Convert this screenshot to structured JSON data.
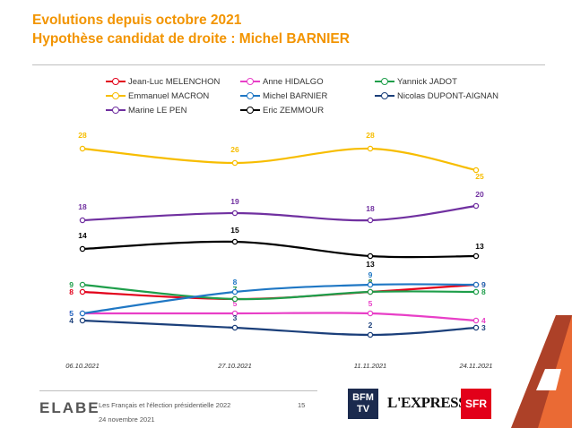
{
  "header": {
    "title_line1": "Evolutions depuis octobre 2021",
    "title_line2": "Hypothèse candidat de droite : Michel BARNIER"
  },
  "chart_data": {
    "type": "line",
    "x": [
      "06.10.2021",
      "27.10.2021",
      "11.11.2021",
      "24.11.2021"
    ],
    "ylim": [
      0,
      30
    ],
    "grid": false,
    "legend_position": "top",
    "series": [
      {
        "name": "Jean-Luc MELENCHON",
        "color": "#e2001a",
        "values": [
          8,
          7,
          8,
          9
        ]
      },
      {
        "name": "Anne HIDALGO",
        "color": "#e83fc7",
        "values": [
          5,
          5,
          5,
          4
        ]
      },
      {
        "name": "Yannick JADOT",
        "color": "#1e9e4a",
        "values": [
          9,
          7,
          8,
          8
        ]
      },
      {
        "name": "Emmanuel MACRON",
        "color": "#f7bd00",
        "values": [
          28,
          26,
          28,
          25
        ]
      },
      {
        "name": "Michel BARNIER",
        "color": "#1f77c4",
        "values": [
          5,
          8,
          9,
          9
        ]
      },
      {
        "name": "Nicolas DUPONT-AIGNAN",
        "color": "#1b3f7a",
        "values": [
          4,
          3,
          2,
          3
        ]
      },
      {
        "name": "Marine LE PEN",
        "color": "#7030a0",
        "values": [
          18,
          19,
          18,
          20
        ]
      },
      {
        "name": "Eric ZEMMOUR",
        "color": "#000000",
        "values": [
          14,
          15,
          13,
          13
        ]
      }
    ]
  },
  "footer": {
    "brand": "ELABE",
    "study": "Les Français et l'élection présidentielle 2022",
    "date": "24 novembre 2021",
    "page": "15",
    "logo_bfm": "BFM TV",
    "logo_express": "L'EXPRESS",
    "logo_sfr": "SFR"
  }
}
